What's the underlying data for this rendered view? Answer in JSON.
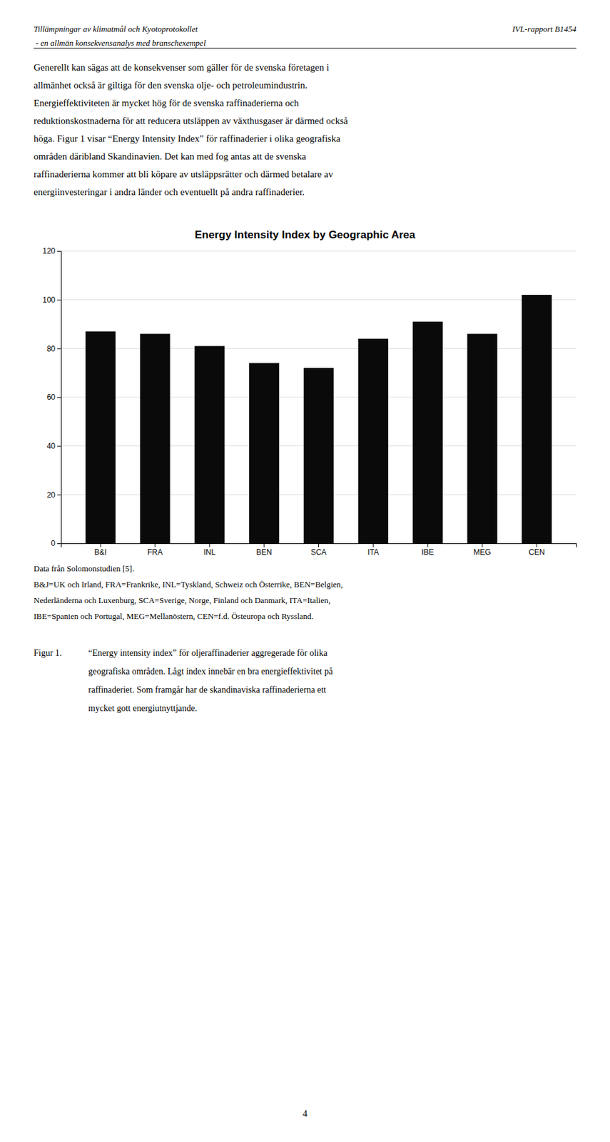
{
  "chart_data": {
    "type": "bar",
    "title": "Energy Intensity Index by Geographic Area",
    "categories": [
      "B&I",
      "FRA",
      "INL",
      "BEN",
      "SCA",
      "ITA",
      "IBE",
      "MEG",
      "CEN"
    ],
    "values": [
      87,
      86,
      81,
      74,
      72,
      84,
      91,
      86,
      102
    ],
    "color": "#0a0a0a",
    "ylim": [
      0,
      120
    ],
    "yticks": [
      0,
      20,
      40,
      60,
      80,
      100,
      120
    ],
    "grid": true
  },
  "header_left": [
    "Tillämpningar av klimatmål och Kyotoprotokollet",
    " - en allmän konsekvensanalys med branschexempel"
  ],
  "header_right": "IVL-rapport B1454",
  "body_lines": [
    "Generellt kan sägas att de konsekvenser som gäller för de svenska företagen i",
    "allmänhet också är giltiga för den svenska olje- och petroleumindustrin.",
    "Energieffektiviteten är mycket hög för de svenska raffinaderierna och",
    "reduktionskostnaderna för att reducera utsläppen av växthusgaser är därmed också",
    "höga. Figur 1 visar “Energy Intensity Index” för raffinaderier i olika geografiska",
    "områden däribland Skandinavien. Det kan med fog antas att de svenska",
    "raffinaderierna kommer att bli köpare av utsläppsrätter och därmed betalare av",
    "energiinvesteringar i andra länder och eventuellt på andra raffinaderier."
  ],
  "caption_source": "Data från Solomonstudien [5].",
  "caption_lines": [
    "B&J=UK och Irland, FRA=Frankrike, INL=Tyskland, Schweiz och Österrike, BEN=Belgien,",
    "Nederländerna och Luxenburg, SCA=Sverige, Norge, Finland och Danmark, ITA=Italien,",
    "IBE=Spanien och Portugal, MEG=Mellanöstern, CEN=f.d. Östeuropa och Ryssland."
  ],
  "figure_label": "Figur 1.",
  "figure_caption_lines": [
    "“Energy intensity index” för oljeraffinaderier aggregerade för olika",
    "geografiska områden. Lågt index innebär en bra energieffektivitet på",
    "raffinaderiet. Som framgår har de skandinaviska raffinaderierna ett",
    "mycket gott energiutnyttjande."
  ],
  "page_number": "4"
}
